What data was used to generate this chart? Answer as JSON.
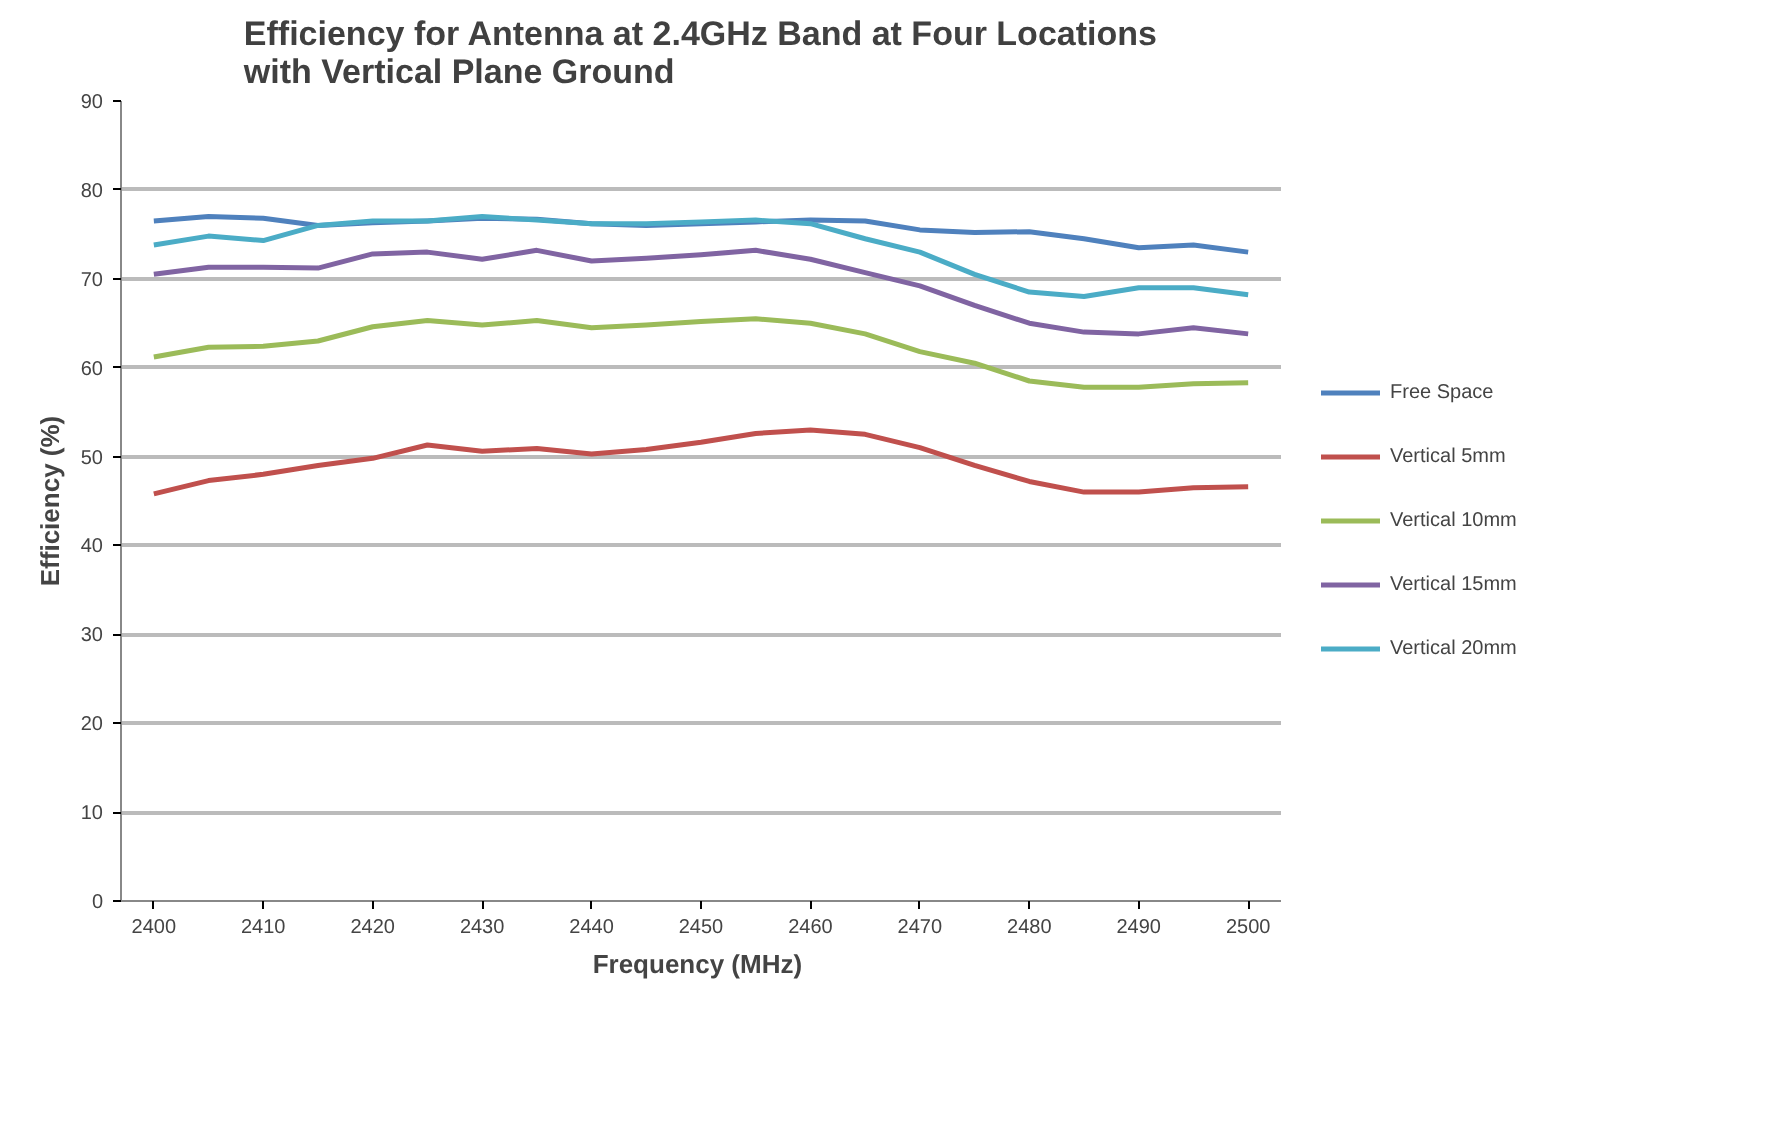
{
  "chart_data": {
    "type": "line",
    "title": "Efficiency for Antenna at 2.4GHz Band at Four Locations\nwith Vertical Plane Ground",
    "xlabel": "Frequency  (MHz)",
    "ylabel": "Efficiency (%)",
    "x": [
      2400,
      2405,
      2410,
      2415,
      2420,
      2425,
      2430,
      2435,
      2440,
      2445,
      2450,
      2455,
      2460,
      2465,
      2470,
      2475,
      2480,
      2485,
      2490,
      2495,
      2500
    ],
    "xlim": [
      2397,
      2503
    ],
    "xticks": [
      2400,
      2410,
      2420,
      2430,
      2440,
      2450,
      2460,
      2470,
      2480,
      2490,
      2500
    ],
    "ylim": [
      0,
      90
    ],
    "yticks": [
      0,
      10,
      20,
      30,
      40,
      50,
      60,
      70,
      80,
      90
    ],
    "grid": "y",
    "legend": "right",
    "marker": "none",
    "line_style": "solid",
    "series": [
      {
        "name": "Free Space",
        "color": "#4f81bd",
        "values": [
          76.5,
          77,
          76.8,
          76,
          76.3,
          76.5,
          76.8,
          76.7,
          76.2,
          76,
          76.2,
          76.4,
          76.6,
          76.5,
          75.5,
          75.2,
          75.3,
          74.5,
          73.5,
          73.8,
          73
        ]
      },
      {
        "name": "Vertical 5mm",
        "color": "#c0504d",
        "values": [
          45.8,
          47.3,
          48,
          49,
          49.8,
          51.3,
          50.6,
          50.9,
          50.3,
          50.8,
          51.6,
          52.6,
          53,
          52.5,
          51,
          49,
          47.2,
          46,
          46,
          46.5,
          46.6
        ]
      },
      {
        "name": "Vertical 10mm",
        "color": "#9bbb59",
        "values": [
          61.2,
          62.3,
          62.4,
          63,
          64.6,
          65.3,
          64.8,
          65.3,
          64.5,
          64.8,
          65.2,
          65.5,
          65,
          63.8,
          61.8,
          60.5,
          58.5,
          57.8,
          57.8,
          58.2,
          58.3
        ]
      },
      {
        "name": "Vertical 15mm",
        "color": "#8064a2",
        "values": [
          70.5,
          71.3,
          71.3,
          71.2,
          72.8,
          73,
          72.2,
          73.2,
          72,
          72.3,
          72.7,
          73.2,
          72.2,
          70.7,
          69.2,
          67,
          65,
          64,
          63.8,
          64.5,
          63.8
        ]
      },
      {
        "name": "Vertical 20mm",
        "color": "#4bacc6",
        "values": [
          73.8,
          74.8,
          74.3,
          76,
          76.5,
          76.5,
          77,
          76.6,
          76.2,
          76.2,
          76.4,
          76.6,
          76.2,
          74.5,
          73,
          70.5,
          68.5,
          68,
          69,
          69,
          68.2
        ]
      }
    ]
  }
}
